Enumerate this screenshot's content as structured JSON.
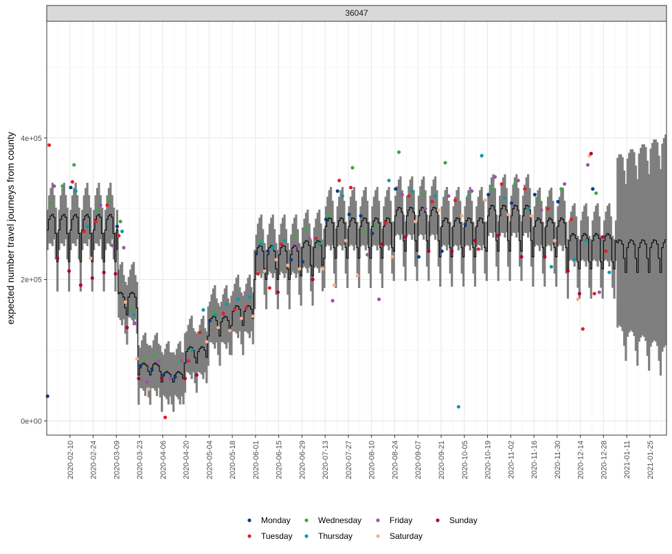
{
  "chart_data": {
    "type": "line",
    "panel_label": "36047",
    "ylabel": "expected number travel journeys from county",
    "xlabel": "",
    "ylim": [
      -20000,
      565000
    ],
    "xlim": [
      "2020-01-27",
      "2021-02-04"
    ],
    "y_ticks": [
      {
        "value": 0,
        "label": "0e+00"
      },
      {
        "value": 200000,
        "label": "2e+05"
      },
      {
        "value": 400000,
        "label": "4e+05"
      }
    ],
    "x_ticks": [
      "2020-02-10",
      "2020-02-24",
      "2020-03-09",
      "2020-03-23",
      "2020-04-06",
      "2020-04-20",
      "2020-05-04",
      "2020-05-18",
      "2020-06-01",
      "2020-06-15",
      "2020-06-29",
      "2020-07-13",
      "2020-07-27",
      "2020-08-10",
      "2020-08-24",
      "2020-09-07",
      "2020-09-21",
      "2020-10-05",
      "2020-10-19",
      "2020-11-02",
      "2020-11-16",
      "2020-11-30",
      "2020-12-14",
      "2020-12-28",
      "2021-01-11",
      "2021-01-25"
    ],
    "grid": true,
    "legend_position": "bottom",
    "legend": [
      {
        "name": "Monday",
        "color": "#0b3c87"
      },
      {
        "name": "Tuesday",
        "color": "#e0202a"
      },
      {
        "name": "Wednesday",
        "color": "#3aa84a"
      },
      {
        "name": "Thursday",
        "color": "#0e9aa5"
      },
      {
        "name": "Friday",
        "color": "#9b54a8"
      },
      {
        "name": "Saturday",
        "color": "#f3b193"
      },
      {
        "name": "Sunday",
        "color": "#b5002a"
      }
    ],
    "forecast_start": "2021-01-05",
    "expected_weekly_profile": [
      {
        "start": "2020-01-27",
        "sat": 265000,
        "sun": 225000,
        "mon": 270000,
        "tue": 285000,
        "wed": 290000,
        "thu": 292000,
        "fri": 288000
      },
      {
        "start": "2020-03-10",
        "sat": 160000,
        "sun": 150000,
        "mon": 175000,
        "tue": 180000,
        "wed": 182000,
        "thu": 180000,
        "fri": 175000
      },
      {
        "start": "2020-03-22",
        "sat": 70000,
        "sun": 65000,
        "mon": 75000,
        "tue": 80000,
        "wed": 82000,
        "thu": 80000,
        "fri": 78000
      },
      {
        "start": "2020-04-05",
        "sat": 60000,
        "sun": 55000,
        "mon": 65000,
        "tue": 68000,
        "wed": 70000,
        "thu": 68000,
        "fri": 66000
      },
      {
        "start": "2020-04-19",
        "sat": 90000,
        "sun": 82000,
        "mon": 98000,
        "tue": 102000,
        "wed": 105000,
        "thu": 104000,
        "fri": 100000
      },
      {
        "start": "2020-05-03",
        "sat": 130000,
        "sun": 120000,
        "mon": 140000,
        "tue": 145000,
        "wed": 148000,
        "thu": 147000,
        "fri": 142000
      },
      {
        "start": "2020-05-17",
        "sat": 145000,
        "sun": 135000,
        "mon": 155000,
        "tue": 160000,
        "wed": 163000,
        "thu": 162000,
        "fri": 158000
      },
      {
        "start": "2020-05-31",
        "sat": 215000,
        "sun": 200000,
        "mon": 235000,
        "tue": 245000,
        "wed": 248000,
        "thu": 247000,
        "fri": 240000
      },
      {
        "start": "2020-06-28",
        "sat": 220000,
        "sun": 205000,
        "mon": 245000,
        "tue": 252000,
        "wed": 255000,
        "thu": 254000,
        "fri": 248000
      },
      {
        "start": "2020-07-12",
        "sat": 245000,
        "sun": 230000,
        "mon": 275000,
        "tue": 283000,
        "wed": 287000,
        "thu": 286000,
        "fri": 280000
      },
      {
        "start": "2020-08-23",
        "sat": 255000,
        "sun": 240000,
        "mon": 290000,
        "tue": 298000,
        "wed": 302000,
        "thu": 301000,
        "fri": 295000
      },
      {
        "start": "2020-09-20",
        "sat": 245000,
        "sun": 232000,
        "mon": 275000,
        "tue": 283000,
        "wed": 287000,
        "thu": 286000,
        "fri": 280000
      },
      {
        "start": "2020-10-18",
        "sat": 255000,
        "sun": 240000,
        "mon": 290000,
        "tue": 300000,
        "wed": 305000,
        "thu": 304000,
        "fri": 298000
      },
      {
        "start": "2020-11-15",
        "sat": 245000,
        "sun": 232000,
        "mon": 275000,
        "tue": 283000,
        "wed": 287000,
        "thu": 285000,
        "fri": 280000
      },
      {
        "start": "2020-12-06",
        "sat": 225000,
        "sun": 215000,
        "mon": 255000,
        "tue": 262000,
        "wed": 265000,
        "thu": 263000,
        "fri": 258000
      },
      {
        "start": "2021-01-05",
        "sat": 230000,
        "sun": 210000,
        "mon": 245000,
        "tue": 252000,
        "wed": 256000,
        "thu": 255000,
        "fri": 250000
      }
    ],
    "interval_halfwidth": {
      "fit": 38000,
      "forecast": 120000
    },
    "observed_points": [
      {
        "date": "2020-01-27",
        "value": 35000
      },
      {
        "date": "2020-01-28",
        "value": 390000
      },
      {
        "date": "2020-01-29",
        "value": 308000
      },
      {
        "date": "2020-01-31",
        "value": 332000
      },
      {
        "date": "2020-02-02",
        "value": 230000
      },
      {
        "date": "2020-02-05",
        "value": 332000
      },
      {
        "date": "2020-02-09",
        "value": 212000
      },
      {
        "date": "2020-02-10",
        "value": 330000
      },
      {
        "date": "2020-02-11",
        "value": 338000
      },
      {
        "date": "2020-02-12",
        "value": 362000
      },
      {
        "date": "2020-02-13",
        "value": 325000
      },
      {
        "date": "2020-02-16",
        "value": 192000
      },
      {
        "date": "2020-02-18",
        "value": 268000
      },
      {
        "date": "2020-02-20",
        "value": 275000
      },
      {
        "date": "2020-02-22",
        "value": 230000
      },
      {
        "date": "2020-02-23",
        "value": 202000
      },
      {
        "date": "2020-02-25",
        "value": 282000
      },
      {
        "date": "2020-02-26",
        "value": 298000
      },
      {
        "date": "2020-02-28",
        "value": 305000
      },
      {
        "date": "2020-03-01",
        "value": 210000
      },
      {
        "date": "2020-03-03",
        "value": 305000
      },
      {
        "date": "2020-03-04",
        "value": 312000
      },
      {
        "date": "2020-03-06",
        "value": 248000
      },
      {
        "date": "2020-03-08",
        "value": 208000
      },
      {
        "date": "2020-03-09",
        "value": 275000
      },
      {
        "date": "2020-03-10",
        "value": 262000
      },
      {
        "date": "2020-03-11",
        "value": 282000
      },
      {
        "date": "2020-03-12",
        "value": 268000
      },
      {
        "date": "2020-03-13",
        "value": 245000
      },
      {
        "date": "2020-03-14",
        "value": 168000
      },
      {
        "date": "2020-03-15",
        "value": 132000
      },
      {
        "date": "2020-03-18",
        "value": 158000
      },
      {
        "date": "2020-03-19",
        "value": 150000
      },
      {
        "date": "2020-03-20",
        "value": 138000
      },
      {
        "date": "2020-03-21",
        "value": 88000
      },
      {
        "date": "2020-03-22",
        "value": 60000
      },
      {
        "date": "2020-03-23",
        "value": 78000
      },
      {
        "date": "2020-03-25",
        "value": 88000
      },
      {
        "date": "2020-03-27",
        "value": 55000
      },
      {
        "date": "2020-03-28",
        "value": 45000
      },
      {
        "date": "2020-03-30",
        "value": 72000
      },
      {
        "date": "2020-04-01",
        "value": 92000
      },
      {
        "date": "2020-04-03",
        "value": 85000
      },
      {
        "date": "2020-04-05",
        "value": 60000
      },
      {
        "date": "2020-04-06",
        "value": 65000
      },
      {
        "date": "2020-04-07",
        "value": 5000
      },
      {
        "date": "2020-04-10",
        "value": 60000
      },
      {
        "date": "2020-04-13",
        "value": 62000
      },
      {
        "date": "2020-04-15",
        "value": 83000
      },
      {
        "date": "2020-04-17",
        "value": 85000
      },
      {
        "date": "2020-04-19",
        "value": 60000
      },
      {
        "date": "2020-04-21",
        "value": 85000
      },
      {
        "date": "2020-04-23",
        "value": 100000
      },
      {
        "date": "2020-04-26",
        "value": 65000
      },
      {
        "date": "2020-04-28",
        "value": 125000
      },
      {
        "date": "2020-04-30",
        "value": 157000
      },
      {
        "date": "2020-05-02",
        "value": 112000
      },
      {
        "date": "2020-05-04",
        "value": 142000
      },
      {
        "date": "2020-05-06",
        "value": 155000
      },
      {
        "date": "2020-05-07",
        "value": 150000
      },
      {
        "date": "2020-05-09",
        "value": 132000
      },
      {
        "date": "2020-05-12",
        "value": 152000
      },
      {
        "date": "2020-05-14",
        "value": 165000
      },
      {
        "date": "2020-05-16",
        "value": 128000
      },
      {
        "date": "2020-05-19",
        "value": 158000
      },
      {
        "date": "2020-05-21",
        "value": 172000
      },
      {
        "date": "2020-05-23",
        "value": 145000
      },
      {
        "date": "2020-05-26",
        "value": 160000
      },
      {
        "date": "2020-05-28",
        "value": 175000
      },
      {
        "date": "2020-05-30",
        "value": 148000
      },
      {
        "date": "2020-06-01",
        "value": 238000
      },
      {
        "date": "2020-06-02",
        "value": 208000
      },
      {
        "date": "2020-06-03",
        "value": 255000
      },
      {
        "date": "2020-06-04",
        "value": 250000
      },
      {
        "date": "2020-06-06",
        "value": 212000
      },
      {
        "date": "2020-06-08",
        "value": 240000
      },
      {
        "date": "2020-06-09",
        "value": 188000
      },
      {
        "date": "2020-06-11",
        "value": 245000
      },
      {
        "date": "2020-06-13",
        "value": 228000
      },
      {
        "date": "2020-06-14",
        "value": 182000
      },
      {
        "date": "2020-06-16",
        "value": 250000
      },
      {
        "date": "2020-06-18",
        "value": 255000
      },
      {
        "date": "2020-06-20",
        "value": 220000
      },
      {
        "date": "2020-06-22",
        "value": 228000
      },
      {
        "date": "2020-06-24",
        "value": 262000
      },
      {
        "date": "2020-06-26",
        "value": 248000
      },
      {
        "date": "2020-06-27",
        "value": 215000
      },
      {
        "date": "2020-06-29",
        "value": 225000
      },
      {
        "date": "2020-07-01",
        "value": 272000
      },
      {
        "date": "2020-07-03",
        "value": 258000
      },
      {
        "date": "2020-07-05",
        "value": 200000
      },
      {
        "date": "2020-07-07",
        "value": 258000
      },
      {
        "date": "2020-07-09",
        "value": 250000
      },
      {
        "date": "2020-07-11",
        "value": 215000
      },
      {
        "date": "2020-07-13",
        "value": 285000
      },
      {
        "date": "2020-07-15",
        "value": 290000
      },
      {
        "date": "2020-07-17",
        "value": 170000
      },
      {
        "date": "2020-07-18",
        "value": 192000
      },
      {
        "date": "2020-07-20",
        "value": 325000
      },
      {
        "date": "2020-07-21",
        "value": 340000
      },
      {
        "date": "2020-07-23",
        "value": 318000
      },
      {
        "date": "2020-07-25",
        "value": 255000
      },
      {
        "date": "2020-07-27",
        "value": 292000
      },
      {
        "date": "2020-07-28",
        "value": 330000
      },
      {
        "date": "2020-07-29",
        "value": 358000
      },
      {
        "date": "2020-08-01",
        "value": 205000
      },
      {
        "date": "2020-08-03",
        "value": 290000
      },
      {
        "date": "2020-08-05",
        "value": 268000
      },
      {
        "date": "2020-08-07",
        "value": 235000
      },
      {
        "date": "2020-08-10",
        "value": 265000
      },
      {
        "date": "2020-08-12",
        "value": 275000
      },
      {
        "date": "2020-08-14",
        "value": 172000
      },
      {
        "date": "2020-08-16",
        "value": 250000
      },
      {
        "date": "2020-08-18",
        "value": 280000
      },
      {
        "date": "2020-08-20",
        "value": 340000
      },
      {
        "date": "2020-08-22",
        "value": 232000
      },
      {
        "date": "2020-08-24",
        "value": 328000
      },
      {
        "date": "2020-08-26",
        "value": 380000
      },
      {
        "date": "2020-08-28",
        "value": 320000
      },
      {
        "date": "2020-08-30",
        "value": 260000
      },
      {
        "date": "2020-09-01",
        "value": 318000
      },
      {
        "date": "2020-09-03",
        "value": 325000
      },
      {
        "date": "2020-09-05",
        "value": 282000
      },
      {
        "date": "2020-09-07",
        "value": 232000
      },
      {
        "date": "2020-09-09",
        "value": 320000
      },
      {
        "date": "2020-09-11",
        "value": 300000
      },
      {
        "date": "2020-09-13",
        "value": 240000
      },
      {
        "date": "2020-09-15",
        "value": 310000
      },
      {
        "date": "2020-09-17",
        "value": 318000
      },
      {
        "date": "2020-09-19",
        "value": 298000
      },
      {
        "date": "2020-09-21",
        "value": 240000
      },
      {
        "date": "2020-09-23",
        "value": 365000
      },
      {
        "date": "2020-09-25",
        "value": 318000
      },
      {
        "date": "2020-09-27",
        "value": 240000
      },
      {
        "date": "2020-09-29",
        "value": 312000
      },
      {
        "date": "2020-10-01",
        "value": 20000
      },
      {
        "date": "2020-10-03",
        "value": 290000
      },
      {
        "date": "2020-10-05",
        "value": 278000
      },
      {
        "date": "2020-10-07",
        "value": 318000
      },
      {
        "date": "2020-10-09",
        "value": 325000
      },
      {
        "date": "2020-10-11",
        "value": 255000
      },
      {
        "date": "2020-10-13",
        "value": 243000
      },
      {
        "date": "2020-10-15",
        "value": 375000
      },
      {
        "date": "2020-10-17",
        "value": 312000
      },
      {
        "date": "2020-10-19",
        "value": 320000
      },
      {
        "date": "2020-10-21",
        "value": 328000
      },
      {
        "date": "2020-10-23",
        "value": 345000
      },
      {
        "date": "2020-10-25",
        "value": 262000
      },
      {
        "date": "2020-10-27",
        "value": 335000
      },
      {
        "date": "2020-10-29",
        "value": 315000
      },
      {
        "date": "2020-10-31",
        "value": 292000
      },
      {
        "date": "2020-11-02",
        "value": 308000
      },
      {
        "date": "2020-11-04",
        "value": 335000
      },
      {
        "date": "2020-11-06",
        "value": 340000
      },
      {
        "date": "2020-11-08",
        "value": 232000
      },
      {
        "date": "2020-11-10",
        "value": 328000
      },
      {
        "date": "2020-11-12",
        "value": 300000
      },
      {
        "date": "2020-11-14",
        "value": 290000
      },
      {
        "date": "2020-11-16",
        "value": 320000
      },
      {
        "date": "2020-11-18",
        "value": 312000
      },
      {
        "date": "2020-11-20",
        "value": 298000
      },
      {
        "date": "2020-11-22",
        "value": 232000
      },
      {
        "date": "2020-11-24",
        "value": 300000
      },
      {
        "date": "2020-11-26",
        "value": 218000
      },
      {
        "date": "2020-11-28",
        "value": 255000
      },
      {
        "date": "2020-11-30",
        "value": 310000
      },
      {
        "date": "2020-12-02",
        "value": 328000
      },
      {
        "date": "2020-12-04",
        "value": 335000
      },
      {
        "date": "2020-12-06",
        "value": 212000
      },
      {
        "date": "2020-12-08",
        "value": 285000
      },
      {
        "date": "2020-12-10",
        "value": 228000
      },
      {
        "date": "2020-12-12",
        "value": 172000
      },
      {
        "date": "2020-12-13",
        "value": 180000
      },
      {
        "date": "2020-12-15",
        "value": 130000
      },
      {
        "date": "2020-12-17",
        "value": 255000
      },
      {
        "date": "2020-12-18",
        "value": 362000
      },
      {
        "date": "2020-12-19",
        "value": 375000
      },
      {
        "date": "2020-12-20",
        "value": 378000
      },
      {
        "date": "2020-12-21",
        "value": 328000
      },
      {
        "date": "2020-12-22",
        "value": 180000
      },
      {
        "date": "2020-12-23",
        "value": 322000
      },
      {
        "date": "2020-12-25",
        "value": 182000
      },
      {
        "date": "2020-12-27",
        "value": 260000
      },
      {
        "date": "2020-12-29",
        "value": 240000
      },
      {
        "date": "2020-12-31",
        "value": 210000
      }
    ]
  }
}
